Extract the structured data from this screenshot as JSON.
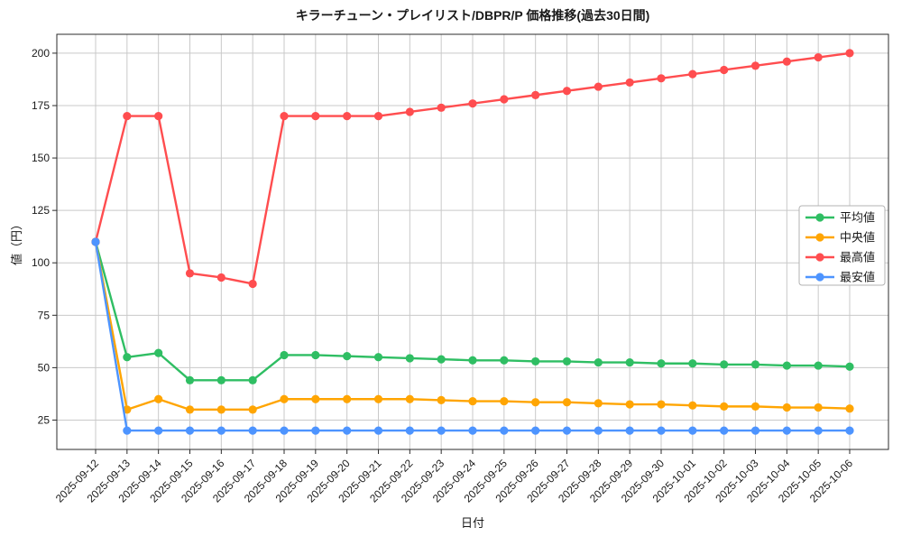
{
  "chart_data": {
    "type": "line",
    "title": "キラーチューン・プレイリスト/DBPR/P 価格推移(過去30日間)",
    "xlabel": "日付",
    "ylabel": "値（円）",
    "x": [
      "2025-09-12",
      "2025-09-13",
      "2025-09-14",
      "2025-09-15",
      "2025-09-16",
      "2025-09-17",
      "2025-09-18",
      "2025-09-19",
      "2025-09-20",
      "2025-09-21",
      "2025-09-22",
      "2025-09-23",
      "2025-09-24",
      "2025-09-25",
      "2025-09-26",
      "2025-09-27",
      "2025-09-28",
      "2025-09-29",
      "2025-09-30",
      "2025-10-01",
      "2025-10-02",
      "2025-10-03",
      "2025-10-04",
      "2025-10-05",
      "2025-10-06"
    ],
    "series": [
      {
        "name": "平均値",
        "color": "#2fbe63",
        "values": [
          110,
          55,
          57,
          44,
          44,
          44,
          56,
          56,
          55.5,
          55,
          54.5,
          54,
          53.5,
          53.5,
          53,
          53,
          52.5,
          52.5,
          52,
          52,
          51.5,
          51.5,
          51,
          51,
          50.5
        ]
      },
      {
        "name": "中央値",
        "color": "#ffa502",
        "values": [
          110,
          30,
          35,
          30,
          30,
          30,
          35,
          35,
          35,
          35,
          35,
          34.5,
          34,
          34,
          33.5,
          33.5,
          33,
          32.5,
          32.5,
          32,
          31.5,
          31.5,
          31,
          31,
          30.5
        ]
      },
      {
        "name": "最高値",
        "color": "#ff4d4f",
        "values": [
          110,
          170,
          170,
          95,
          93,
          90,
          170,
          170,
          170,
          170,
          172,
          174,
          176,
          178,
          180,
          182,
          184,
          186,
          188,
          190,
          192,
          194,
          196,
          198,
          200
        ]
      },
      {
        "name": "最安値",
        "color": "#4d94ff",
        "values": [
          110,
          20,
          20,
          20,
          20,
          20,
          20,
          20,
          20,
          20,
          20,
          20,
          20,
          20,
          20,
          20,
          20,
          20,
          20,
          20,
          20,
          20,
          20,
          20,
          20
        ]
      }
    ],
    "ylim": [
      11,
      209
    ],
    "yticks": [
      25,
      50,
      75,
      100,
      125,
      150,
      175,
      200
    ],
    "grid": true,
    "grid_color": "#c9c9c9",
    "spine_color": "#2b2b2b",
    "background": "#ffffff",
    "legend_position": "center right",
    "x_tick_rotation": 45,
    "marker": "circle"
  }
}
